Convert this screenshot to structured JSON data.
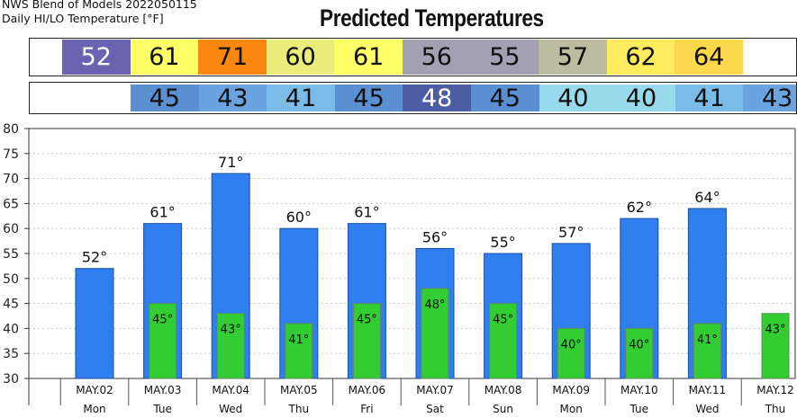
{
  "header": {
    "line1": "NWS Blend of Models 2022050115",
    "line2": "Daily HI/LO Temperature [°F]",
    "title": "Predicted Temperatures"
  },
  "hi_strip": [
    {
      "value": "52",
      "color": "#6b62b0",
      "text_color": "#ffffff"
    },
    {
      "value": "61",
      "color": "#ffff66",
      "text_color": "#111111"
    },
    {
      "value": "71",
      "color": "#f98710",
      "text_color": "#111111"
    },
    {
      "value": "60",
      "color": "#ecec7c",
      "text_color": "#111111"
    },
    {
      "value": "61",
      "color": "#ffff66",
      "text_color": "#111111"
    },
    {
      "value": "56",
      "color": "#a3a0b4",
      "text_color": "#111111"
    },
    {
      "value": "55",
      "color": "#a3a0b4",
      "text_color": "#111111"
    },
    {
      "value": "57",
      "color": "#bcbca0",
      "text_color": "#111111"
    },
    {
      "value": "62",
      "color": "#ffeb5e",
      "text_color": "#111111"
    },
    {
      "value": "64",
      "color": "#fcd94c",
      "text_color": "#111111"
    }
  ],
  "lo_strip": [
    {
      "value": "45",
      "color": "#5a8fd2",
      "text_color": "#111111"
    },
    {
      "value": "43",
      "color": "#6aa3df",
      "text_color": "#111111"
    },
    {
      "value": "41",
      "color": "#7bbbe8",
      "text_color": "#111111"
    },
    {
      "value": "45",
      "color": "#5a8fd2",
      "text_color": "#111111"
    },
    {
      "value": "48",
      "color": "#4d5da3",
      "text_color": "#ffffff"
    },
    {
      "value": "45",
      "color": "#5a8fd2",
      "text_color": "#111111"
    },
    {
      "value": "40",
      "color": "#99d9ec",
      "text_color": "#111111"
    },
    {
      "value": "40",
      "color": "#99d9ec",
      "text_color": "#111111"
    },
    {
      "value": "41",
      "color": "#7bbbe8",
      "text_color": "#111111"
    },
    {
      "value": "43",
      "color": "#6aa3df",
      "text_color": "#111111"
    }
  ],
  "chart_data": {
    "type": "bar",
    "categories": [
      "MAY.02",
      "MAY.03",
      "MAY.04",
      "MAY.05",
      "MAY.06",
      "MAY.07",
      "MAY.08",
      "MAY.09",
      "MAY.10",
      "MAY.11",
      "MAY.12"
    ],
    "days": [
      "Mon",
      "Tue",
      "Wed",
      "Thu",
      "Fri",
      "Sat",
      "Sun",
      "Mon",
      "Tue",
      "Wed",
      "Thu"
    ],
    "series": [
      {
        "values": [
          52,
          61,
          71,
          60,
          61,
          56,
          55,
          57,
          62,
          64,
          null
        ],
        "color": "#2f7ff0"
      },
      {
        "values": [
          null,
          45,
          43,
          41,
          45,
          48,
          45,
          40,
          40,
          41,
          43
        ],
        "color": "#33cc33"
      }
    ],
    "degree_suffix": "°",
    "yticks": [
      30,
      35,
      40,
      45,
      50,
      55,
      60,
      65,
      70,
      75,
      80
    ],
    "ylim": [
      30,
      80
    ],
    "grid": "horizontal dotted"
  }
}
